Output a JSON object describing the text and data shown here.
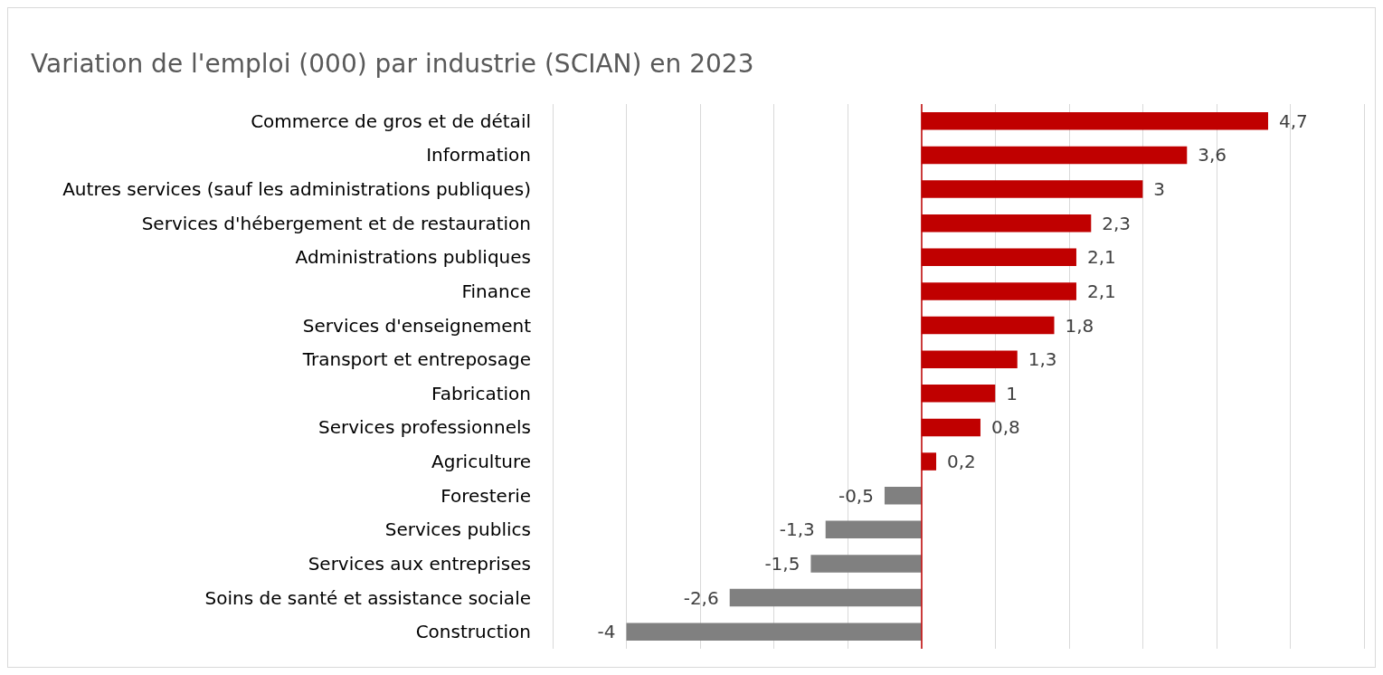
{
  "chart_data": {
    "type": "bar",
    "orientation": "horizontal",
    "title": "Variation de l'emploi (000) par industrie (SCIAN) en 2023",
    "categories": [
      "Commerce de gros et de détail",
      "Information",
      "Autres services (sauf les administrations publiques)",
      "Services d'hébergement et de restauration",
      "Administrations publiques",
      "Finance",
      "Services d'enseignement",
      "Transport et entreposage",
      "Fabrication",
      "Services professionnels",
      "Agriculture",
      "Foresterie",
      "Services publics",
      "Services aux entreprises",
      "Soins de santé et assistance sociale",
      "Construction"
    ],
    "values": [
      4.7,
      3.6,
      3,
      2.3,
      2.1,
      2.1,
      1.8,
      1.3,
      1,
      0.8,
      0.2,
      -0.5,
      -1.3,
      -1.5,
      -2.6,
      -4
    ],
    "colors": [
      "#c00000",
      "#c00000",
      "#c00000",
      "#c00000",
      "#c00000",
      "#c00000",
      "#c00000",
      "#c00000",
      "#c00000",
      "#c00000",
      "#c00000",
      "#808080",
      "#808080",
      "#808080",
      "#808080",
      "#808080"
    ],
    "value_labels": [
      "4,7",
      "3,6",
      "3",
      "2,3",
      "2,1",
      "2,1",
      "1,8",
      "1,3",
      "1",
      "0,8",
      "0,2",
      "-0,5",
      "-1,3",
      "-1,5",
      "-2,6",
      "-4"
    ],
    "ref_lines": [
      {
        "axis": "x",
        "value": 0,
        "color": "#c00000"
      }
    ],
    "xlim": [
      -5,
      6
    ],
    "xticks": [
      -5,
      -4,
      -3,
      -2,
      -1,
      0,
      1,
      2,
      3,
      4,
      5,
      6
    ],
    "tick_labels": "y",
    "grid": "x"
  }
}
